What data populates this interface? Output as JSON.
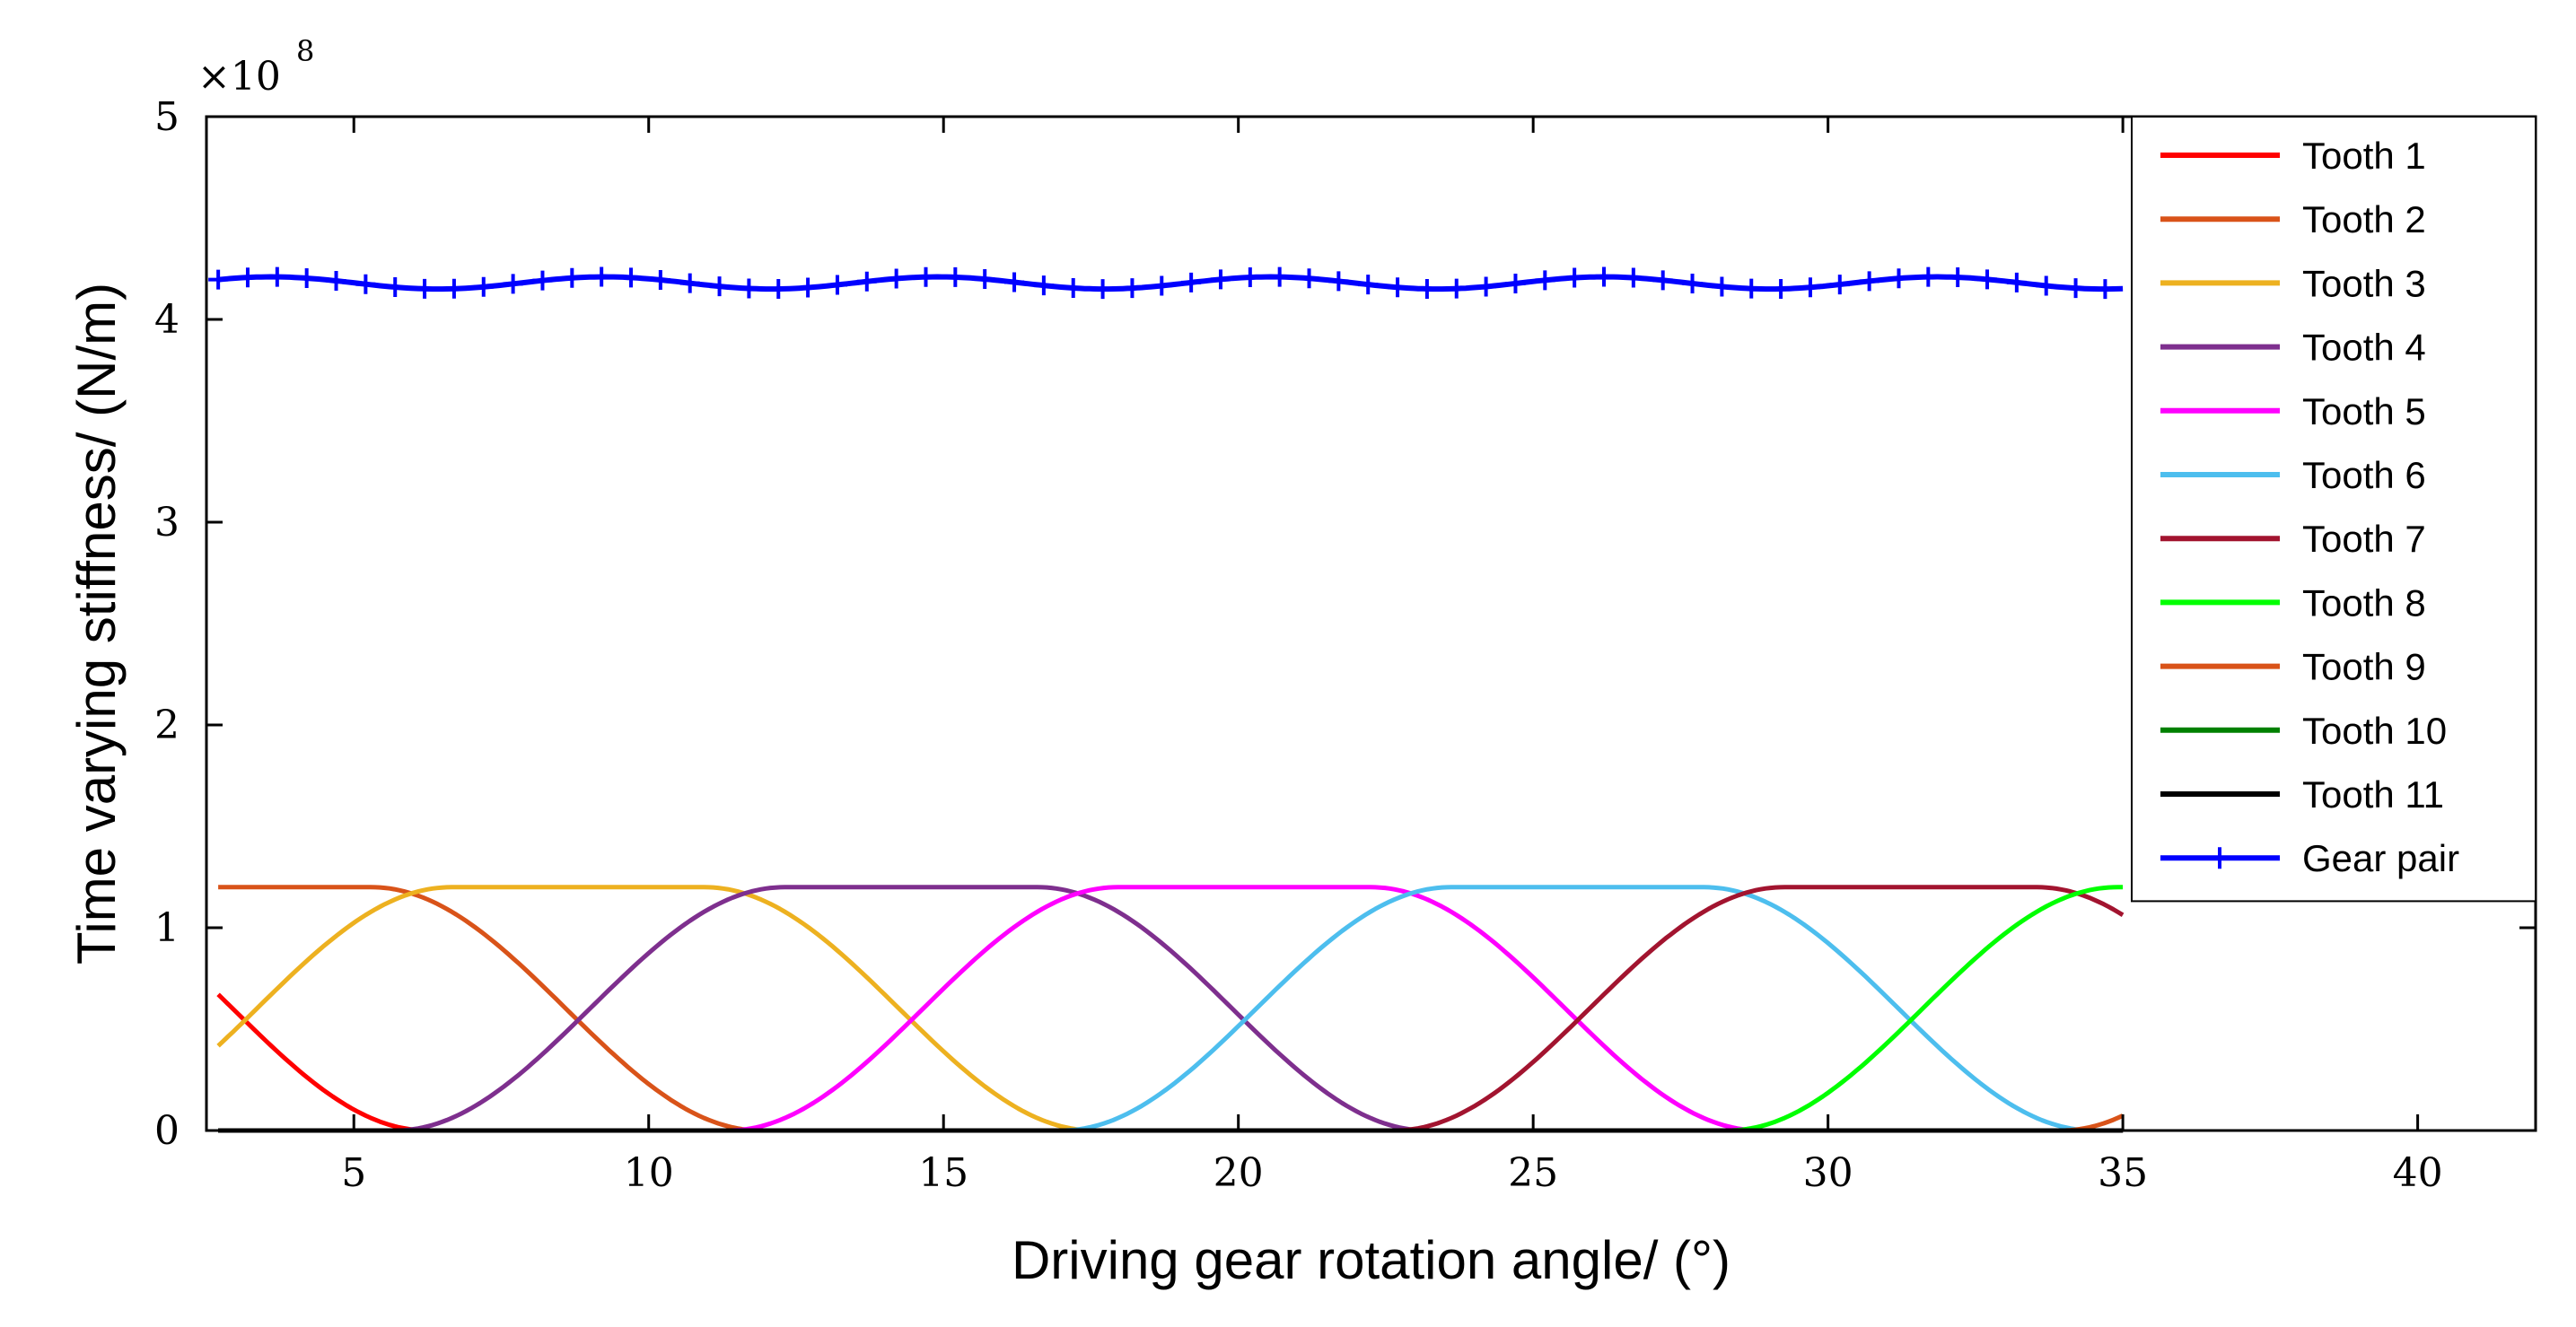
{
  "chart_data": {
    "type": "line",
    "xlabel": "Driving gear rotation angle/ (°)",
    "ylabel": "Time varying stiffness/ (N/m)",
    "y_exponent_base": "×10",
    "y_exponent_power": "8",
    "xlim": [
      2.5,
      42
    ],
    "ylim": [
      0,
      5
    ],
    "xticks": [
      5,
      10,
      15,
      20,
      25,
      30,
      35,
      40
    ],
    "yticks": [
      0,
      1,
      2,
      3,
      4,
      5
    ],
    "grid": false,
    "legend_position": "top-right",
    "model": {
      "peak": 1.2,
      "rise_start_of_tooth1": -11.25,
      "rise_duration": 6.6,
      "flat_duration": 4.3,
      "fall_duration": 6.6,
      "tooth_spacing": 5.65,
      "x_start": 2.7,
      "x_end": 35,
      "gear_pair_mean": 4.18,
      "gear_pair_ripple": 0.03,
      "gear_pair_marker_step": 0.5
    },
    "series": [
      {
        "name": "Tooth 1",
        "color": "#ff0000"
      },
      {
        "name": "Tooth 2",
        "color": "#d95319"
      },
      {
        "name": "Tooth 3",
        "color": "#edb120"
      },
      {
        "name": "Tooth 4",
        "color": "#7e2f8e"
      },
      {
        "name": "Tooth 5",
        "color": "#ff00ff"
      },
      {
        "name": "Tooth 6",
        "color": "#4dbeee"
      },
      {
        "name": "Tooth 7",
        "color": "#a2142f"
      },
      {
        "name": "Tooth 8",
        "color": "#00ff00"
      },
      {
        "name": "Tooth 9",
        "color": "#d95319"
      },
      {
        "name": "Tooth 10",
        "color": "#008000"
      },
      {
        "name": "Tooth 11",
        "color": "#000000"
      },
      {
        "name": "Gear pair",
        "color": "#0000ff",
        "marker": "+"
      }
    ]
  }
}
